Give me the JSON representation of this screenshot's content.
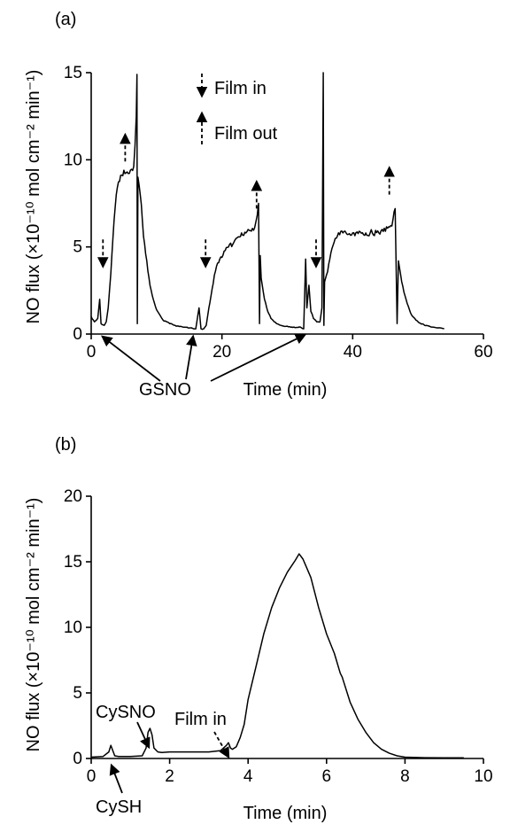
{
  "chart_data": [
    {
      "panel": "(a)",
      "type": "line",
      "xlabel": "Time (min)",
      "ylabel": "NO flux (×10⁻¹⁰ mol cm⁻² min⁻¹)",
      "xlim": [
        0,
        60
      ],
      "ylim": [
        0,
        15
      ],
      "xticks": [
        "0",
        "20",
        "40",
        "60"
      ],
      "yticks": [
        "0",
        "5",
        "10",
        "15"
      ],
      "legend": [
        {
          "style": "dashed-down",
          "label": "Film in"
        },
        {
          "style": "dashed-up",
          "label": "Film out"
        }
      ],
      "annotations": [
        {
          "text": "GSNO",
          "x": [
            2,
            17,
            33
          ]
        }
      ],
      "film_in_x": [
        1.8,
        17.5,
        34.4
      ],
      "film_out_x": [
        5.2,
        25.3,
        45.6
      ],
      "series": [
        {
          "x": [
            0,
            0.5,
            1,
            1.3,
            1.5,
            2,
            2.3,
            2.6,
            3,
            3.5,
            4,
            4.5,
            5,
            5.5,
            6,
            6.5,
            6.9,
            7,
            7.05,
            7.15,
            7.5,
            8,
            8.5,
            9,
            9.5,
            10,
            10.5,
            11,
            12,
            13,
            14,
            15,
            16,
            16.5,
            16.8,
            17.2,
            17.6,
            18,
            18.5,
            19,
            19.5,
            20,
            20.5,
            21,
            22,
            23,
            24,
            25,
            25.6,
            25.75,
            25.85,
            26,
            26.5,
            27,
            27.5,
            28,
            29,
            30,
            31,
            32,
            32.5,
            32.8,
            33,
            33.3,
            33.6,
            34,
            34.5,
            35,
            35.3,
            35.5,
            35.6,
            35.7,
            36,
            36.5,
            37,
            37.5,
            38,
            38.5,
            39,
            40,
            41,
            42,
            43,
            44,
            45,
            46,
            46.5,
            46.8,
            47,
            47.5,
            48,
            48.5,
            49,
            50,
            51,
            52,
            53,
            54
          ],
          "y": [
            1.0,
            0.7,
            0.9,
            2.0,
            0.6,
            0.5,
            0.7,
            1.5,
            3.5,
            6.5,
            8.4,
            9.1,
            9.4,
            9.3,
            9.4,
            9.6,
            12.5,
            14.9,
            0.6,
            9.0,
            8.0,
            5.6,
            4.2,
            2.8,
            2.0,
            1.4,
            1.1,
            0.8,
            0.6,
            0.45,
            0.4,
            0.35,
            0.3,
            1.5,
            0.3,
            0.3,
            0.5,
            1.5,
            2.6,
            3.6,
            4.1,
            4.4,
            4.8,
            5.0,
            5.4,
            5.8,
            6.0,
            6.1,
            7.5,
            0.6,
            4.5,
            3.2,
            2.0,
            1.3,
            0.9,
            0.7,
            0.5,
            0.45,
            0.4,
            0.4,
            0.3,
            4.3,
            1.5,
            2.8,
            1.3,
            0.9,
            0.7,
            0.7,
            1.5,
            15.0,
            0.5,
            3.0,
            3.4,
            4.3,
            5.1,
            5.5,
            5.7,
            5.8,
            5.8,
            5.8,
            5.9,
            5.8,
            5.8,
            5.8,
            5.9,
            6.2,
            7.2,
            0.6,
            4.2,
            3.0,
            2.2,
            1.6,
            1.1,
            0.7,
            0.5,
            0.4,
            0.35,
            0.3
          ]
        }
      ]
    },
    {
      "panel": "(b)",
      "type": "line",
      "xlabel": "Time (min)",
      "ylabel": "NO flux (×10⁻¹⁰ mol cm⁻² min⁻¹)",
      "xlim": [
        0,
        10
      ],
      "ylim": [
        0,
        20
      ],
      "xticks": [
        "0",
        "2",
        "4",
        "6",
        "8",
        "10"
      ],
      "yticks": [
        "0",
        "5",
        "10",
        "15",
        "20"
      ],
      "annotations": [
        {
          "text": "CySH",
          "x": 0.55
        },
        {
          "text": "CySNO",
          "x": 1.5
        },
        {
          "text": "Film in",
          "x": 3.5
        }
      ],
      "series": [
        {
          "x": [
            0,
            0.3,
            0.45,
            0.5,
            0.55,
            0.6,
            0.7,
            1.0,
            1.3,
            1.4,
            1.45,
            1.5,
            1.55,
            1.6,
            1.7,
            1.8,
            2.0,
            2.5,
            3.0,
            3.3,
            3.45,
            3.5,
            3.55,
            3.6,
            3.7,
            3.8,
            3.9,
            4.0,
            4.2,
            4.4,
            4.6,
            4.8,
            5.0,
            5.2,
            5.3,
            5.4,
            5.6,
            5.8,
            6.0,
            6.2,
            6.35,
            6.4,
            6.6,
            6.8,
            7.0,
            7.2,
            7.4,
            7.6,
            7.8,
            8.0,
            8.2,
            8.5,
            9.0,
            9.5
          ],
          "y": [
            0.1,
            0.15,
            0.5,
            1.0,
            0.6,
            0.2,
            0.15,
            0.15,
            0.2,
            0.8,
            2.0,
            2.3,
            1.8,
            0.8,
            0.5,
            0.45,
            0.5,
            0.5,
            0.5,
            0.6,
            1.0,
            1.2,
            0.8,
            0.7,
            0.9,
            1.6,
            2.6,
            4.5,
            7.0,
            9.5,
            11.5,
            13.0,
            14.2,
            15.1,
            15.6,
            15.2,
            13.8,
            11.5,
            9.5,
            8.0,
            6.5,
            6.2,
            4.3,
            3.0,
            2.0,
            1.2,
            0.7,
            0.4,
            0.2,
            0.1,
            0.08,
            0.06,
            0.05,
            0.05
          ]
        }
      ]
    }
  ]
}
